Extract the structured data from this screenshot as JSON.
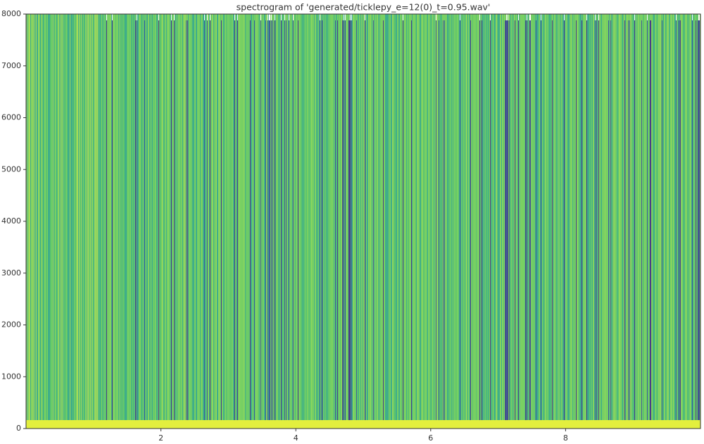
{
  "chart_data": {
    "type": "spectrogram",
    "title": "spectrogram of 'generated/ticklepy_e=12(0)_t=0.95.wav'",
    "xlim": [
      0,
      10
    ],
    "xticks": [
      2,
      4,
      6,
      8
    ],
    "ylim": [
      0,
      8000
    ],
    "yticks": [
      0,
      1000,
      2000,
      3000,
      4000,
      5000,
      6000,
      7000,
      8000
    ]
  }
}
